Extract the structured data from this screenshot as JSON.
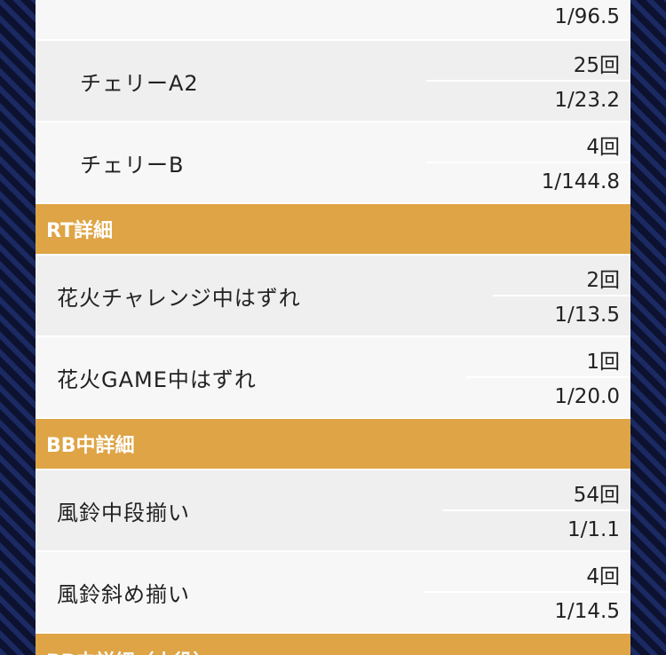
{
  "rows_top": {
    "partial_value": "1/96.5",
    "cherry_a2": {
      "label": "チェリーA2",
      "count": "25回",
      "prob": "1/23.2"
    },
    "cherry_b": {
      "label": "チェリーB",
      "count": "4回",
      "prob": "1/144.8"
    }
  },
  "rt_section": {
    "title": "RT詳細",
    "items": [
      {
        "label": "花火チャレンジ中はずれ",
        "count": "2回",
        "prob": "1/13.5"
      },
      {
        "label": "花火GAME中はずれ",
        "count": "1回",
        "prob": "1/20.0"
      }
    ]
  },
  "bb_section": {
    "title": "BB中詳細",
    "items": [
      {
        "label": "風鈴中段揃い",
        "count": "54回",
        "prob": "1/1.1"
      },
      {
        "label": "風鈴斜め揃い",
        "count": "4回",
        "prob": "1/14.5"
      }
    ]
  },
  "next_section": {
    "title": "BB中詳細（小役）"
  }
}
